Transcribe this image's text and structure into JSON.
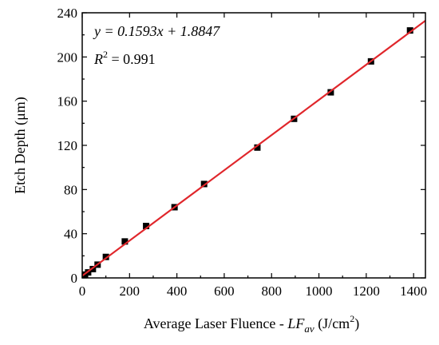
{
  "chart_data": {
    "type": "scatter",
    "xlabel": {
      "prefix": "Average Laser Fluence - ",
      "var": "LF",
      "sub": "av",
      "unit_pre": " (J/cm",
      "unit_sup": "2",
      "unit_post": ")"
    },
    "ylabel": "Etch Depth (μm)",
    "xlim": [
      0,
      1450
    ],
    "ylim": [
      0,
      240
    ],
    "xticks": [
      0,
      200,
      400,
      600,
      800,
      1000,
      1200,
      1400
    ],
    "yticks": [
      0,
      40,
      80,
      120,
      160,
      200,
      240
    ],
    "grid": false,
    "fit": {
      "slope": 0.1593,
      "intercept": 1.8847,
      "color": "#e0262b",
      "equation": "y = 0.1593x + 1.8847",
      "r2_letter": "R",
      "r2_sup": "2",
      "r2_value": " = 0.991"
    },
    "marker_color": "#000000",
    "points": [
      {
        "x": 12,
        "y": 3
      },
      {
        "x": 25,
        "y": 5
      },
      {
        "x": 45,
        "y": 8
      },
      {
        "x": 65,
        "y": 12
      },
      {
        "x": 100,
        "y": 19
      },
      {
        "x": 180,
        "y": 33
      },
      {
        "x": 270,
        "y": 47
      },
      {
        "x": 390,
        "y": 64
      },
      {
        "x": 515,
        "y": 85
      },
      {
        "x": 740,
        "y": 118
      },
      {
        "x": 895,
        "y": 144
      },
      {
        "x": 1050,
        "y": 168
      },
      {
        "x": 1220,
        "y": 196
      },
      {
        "x": 1385,
        "y": 224
      }
    ]
  }
}
